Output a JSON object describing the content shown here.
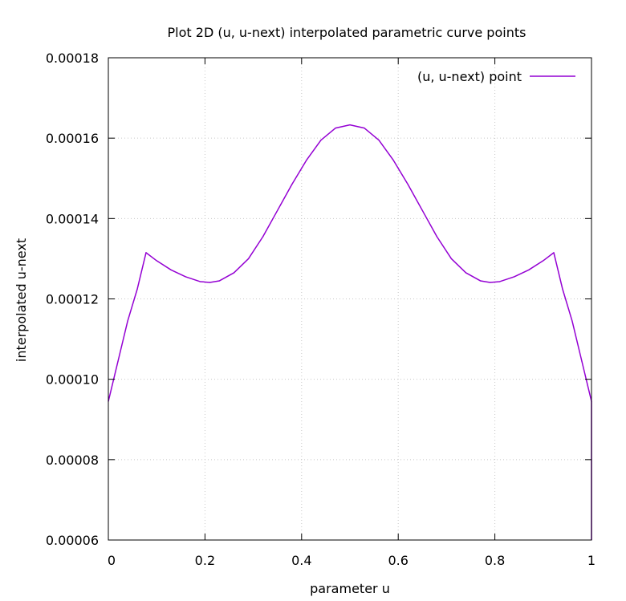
{
  "chart_data": {
    "type": "line",
    "title": "Plot 2D (u, u-next) interpolated parametric curve points",
    "xlabel": "parameter u",
    "ylabel": "interpolated u-next",
    "xlim": [
      0,
      1
    ],
    "ylim": [
      6e-05,
      0.00018
    ],
    "x_ticks": [
      "0",
      "0.2",
      "0.4",
      "0.6",
      "0.8",
      "1"
    ],
    "x_tick_values": [
      0,
      0.2,
      0.4,
      0.6,
      0.8,
      1
    ],
    "y_ticks": [
      "0.00006",
      "0.00008",
      "0.00010",
      "0.00012",
      "0.00014",
      "0.00016",
      "0.00018"
    ],
    "y_tick_values": [
      6e-05,
      8e-05,
      0.0001,
      0.00012,
      0.00014,
      0.00016,
      0.00018
    ],
    "grid": true,
    "legend_position": "top-right",
    "series": [
      {
        "name": "(u, u-next) point",
        "color": "#9400d3",
        "x": [
          0,
          0.02,
          0.04,
          0.06,
          0.078,
          0.1,
          0.13,
          0.16,
          0.19,
          0.21,
          0.23,
          0.26,
          0.29,
          0.32,
          0.35,
          0.38,
          0.41,
          0.44,
          0.47,
          0.5,
          0.53,
          0.56,
          0.59,
          0.62,
          0.65,
          0.68,
          0.71,
          0.74,
          0.77,
          0.79,
          0.81,
          0.84,
          0.87,
          0.9,
          0.922,
          0.94,
          0.96,
          0.98,
          1,
          1
        ],
        "y": [
          9.45e-05,
          0.0001045,
          0.0001145,
          0.0001225,
          0.0001315,
          0.0001295,
          0.0001272,
          0.0001255,
          0.0001243,
          0.0001241,
          0.0001245,
          0.0001265,
          0.00013,
          0.0001355,
          0.000142,
          0.0001485,
          0.0001545,
          0.0001595,
          0.0001625,
          0.0001633,
          0.0001625,
          0.0001595,
          0.0001545,
          0.0001485,
          0.000142,
          0.0001355,
          0.00013,
          0.0001265,
          0.0001245,
          0.0001241,
          0.0001243,
          0.0001255,
          0.0001272,
          0.0001295,
          0.0001315,
          0.0001225,
          0.0001145,
          0.0001045,
          9.45e-05,
          6e-05
        ]
      }
    ]
  }
}
